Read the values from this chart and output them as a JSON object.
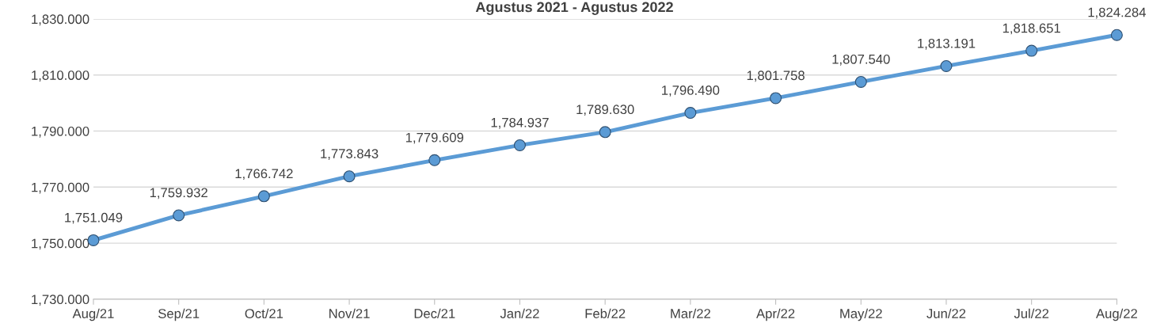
{
  "chart_data": {
    "type": "line",
    "title": "Agustus 2021 - Agustus 2022",
    "categories": [
      "Aug/21",
      "Sep/21",
      "Oct/21",
      "Nov/21",
      "Dec/21",
      "Jan/22",
      "Feb/22",
      "Mar/22",
      "Apr/22",
      "May/22",
      "Jun/22",
      "Jul/22",
      "Aug/22"
    ],
    "series": [
      {
        "color": "#5b9bd5",
        "values": [
          1751.049,
          1759.932,
          1766.742,
          1773.843,
          1779.609,
          1784.937,
          1789.63,
          1796.49,
          1801.758,
          1807.54,
          1813.191,
          1818.651,
          1824.284
        ],
        "value_labels": [
          "1,751.049",
          "1,759.932",
          "1,766.742",
          "1,773.843",
          "1,779.609",
          "1,784.937",
          "1,789.630",
          "1,796.490",
          "1,801.758",
          "1,807.540",
          "1,813.191",
          "1,818.651",
          "1,824.284"
        ]
      }
    ],
    "ylim": [
      1730,
      1830
    ],
    "yticks": [
      {
        "value": 1730,
        "label": "1,730.000"
      },
      {
        "value": 1750,
        "label": "1,750.000"
      },
      {
        "value": 1770,
        "label": "1,770.000"
      },
      {
        "value": 1790,
        "label": "1,790.000"
      },
      {
        "value": 1810,
        "label": "1,810.000"
      },
      {
        "value": 1830,
        "label": "1,830.000"
      }
    ],
    "grid": "y",
    "marker": "circle",
    "line_style": "solid",
    "legend": false
  }
}
